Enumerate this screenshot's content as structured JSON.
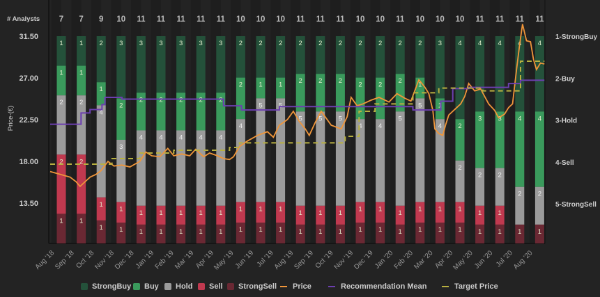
{
  "chart_data": {
    "type": "bar",
    "stacked": "percent",
    "analysts_label": "# Analysts",
    "ylabel": "Price-(€)",
    "ylim": [
      9.2,
      31.5
    ],
    "yticks": [
      "31.50",
      "27.00",
      "22.50",
      "18.00",
      "13.50"
    ],
    "ytick_values": [
      31.5,
      27.0,
      22.5,
      18.0,
      13.5
    ],
    "right_axis_labels": [
      "1-StrongBuy",
      "2-Buy",
      "3-Hold",
      "4-Sell",
      "5-StrongSell"
    ],
    "categories": [
      "Aug '18",
      "Sep '18",
      "Oct '18",
      "Nov '18",
      "Dec '18",
      "Jan '19",
      "Feb '19",
      "Mar '19",
      "Apr '19",
      "May '19",
      "Jun '19",
      "Jul '19",
      "Aug '19",
      "Sep '19",
      "Oct '19",
      "Nov '19",
      "Dec '19",
      "Jan '20",
      "Feb '20",
      "Mar '20",
      "Apr '20",
      "May '20",
      "Jun '20",
      "Jul '20",
      "Aug '20"
    ],
    "analyst_counts": [
      7,
      7,
      9,
      10,
      11,
      11,
      11,
      11,
      11,
      10,
      10,
      10,
      11,
      11,
      11,
      10,
      10,
      11,
      10,
      10,
      10,
      11,
      11,
      11,
      11
    ],
    "series": [
      {
        "name": "StrongBuy",
        "color": "#24513a",
        "values": [
          1,
          1,
          2,
          3,
          3,
          3,
          3,
          3,
          3,
          2,
          2,
          2,
          2,
          2,
          2,
          2,
          2,
          2,
          2,
          3,
          4,
          4,
          4,
          4,
          4
        ]
      },
      {
        "name": "Buy",
        "color": "#3a9a5c",
        "values": [
          1,
          1,
          1,
          2,
          2,
          2,
          2,
          2,
          2,
          2,
          1,
          1,
          2,
          2,
          2,
          2,
          2,
          2,
          1,
          1,
          2,
          3,
          3,
          4,
          4
        ]
      },
      {
        "name": "Hold",
        "color": "#9b9b9b",
        "values": [
          2,
          2,
          4,
          3,
          4,
          4,
          4,
          4,
          4,
          4,
          5,
          5,
          5,
          5,
          5,
          4,
          4,
          5,
          5,
          4,
          2,
          2,
          2,
          2,
          2
        ]
      },
      {
        "name": "Sell",
        "color": "#c0394f",
        "values": [
          2,
          2,
          1,
          1,
          1,
          1,
          1,
          1,
          1,
          1,
          1,
          1,
          1,
          1,
          1,
          1,
          1,
          1,
          1,
          1,
          1,
          1,
          1,
          0,
          0
        ]
      },
      {
        "name": "StrongSell",
        "color": "#6a2833",
        "values": [
          1,
          1,
          1,
          1,
          1,
          1,
          1,
          1,
          1,
          1,
          1,
          1,
          1,
          1,
          1,
          1,
          1,
          1,
          1,
          1,
          1,
          1,
          1,
          1,
          1
        ]
      }
    ],
    "lines": [
      {
        "name": "Price",
        "color": "#f0963a",
        "style": "solid",
        "points": [
          [
            0,
            16.9
          ],
          [
            0.5,
            16.6
          ],
          [
            1.0,
            16.3
          ],
          [
            1.3,
            15.8
          ],
          [
            1.5,
            15.3
          ],
          [
            1.8,
            15.9
          ],
          [
            2.0,
            16.3
          ],
          [
            2.3,
            16.6
          ],
          [
            2.55,
            17.0
          ],
          [
            2.9,
            18.0
          ],
          [
            3.2,
            17.5
          ],
          [
            3.6,
            17.6
          ],
          [
            4.0,
            17.4
          ],
          [
            4.5,
            18.0
          ],
          [
            4.8,
            19.0
          ],
          [
            5.1,
            18.6
          ],
          [
            5.5,
            18.5
          ],
          [
            5.9,
            19.4
          ],
          [
            6.2,
            18.6
          ],
          [
            6.6,
            18.8
          ],
          [
            7.0,
            18.6
          ],
          [
            7.3,
            19.3
          ],
          [
            7.7,
            18.5
          ],
          [
            8.0,
            18.9
          ],
          [
            8.4,
            18.6
          ],
          [
            8.7,
            18.3
          ],
          [
            9.0,
            18.2
          ],
          [
            9.2,
            18.5
          ],
          [
            9.5,
            19.6
          ],
          [
            9.9,
            20.2
          ],
          [
            10.4,
            20.8
          ],
          [
            10.9,
            21.2
          ],
          [
            11.2,
            20.6
          ],
          [
            11.5,
            21.9
          ],
          [
            11.9,
            22.5
          ],
          [
            12.2,
            23.4
          ],
          [
            12.5,
            22.3
          ],
          [
            12.8,
            21.5
          ],
          [
            13.0,
            20.8
          ],
          [
            13.3,
            22.2
          ],
          [
            13.6,
            23.4
          ],
          [
            14.1,
            21.9
          ],
          [
            14.6,
            21.5
          ],
          [
            14.9,
            22.8
          ],
          [
            15.1,
            24.9
          ],
          [
            15.4,
            24.0
          ],
          [
            15.7,
            24.2
          ],
          [
            16.1,
            24.6
          ],
          [
            16.5,
            24.9
          ],
          [
            17.0,
            24.4
          ],
          [
            17.4,
            25.3
          ],
          [
            17.8,
            24.8
          ],
          [
            18.1,
            24.5
          ],
          [
            18.5,
            26.8
          ],
          [
            18.8,
            26.0
          ],
          [
            19.0,
            25.3
          ],
          [
            19.2,
            23.5
          ],
          [
            19.3,
            21.5
          ],
          [
            19.5,
            21.0
          ],
          [
            19.7,
            20.8
          ],
          [
            19.85,
            22.0
          ],
          [
            20.0,
            23.0
          ],
          [
            20.3,
            23.6
          ],
          [
            20.6,
            24.2
          ],
          [
            20.8,
            25.0
          ],
          [
            21.0,
            26.4
          ],
          [
            21.3,
            25.6
          ],
          [
            21.6,
            25.8
          ],
          [
            22.0,
            24.2
          ],
          [
            22.3,
            23.5
          ],
          [
            22.5,
            22.7
          ],
          [
            22.8,
            23.1
          ],
          [
            23.0,
            23.8
          ],
          [
            23.2,
            24.2
          ],
          [
            23.4,
            27.9
          ],
          [
            23.55,
            30.5
          ],
          [
            23.7,
            32.8
          ],
          [
            23.9,
            31.0
          ],
          [
            24.1,
            30.9
          ],
          [
            24.25,
            29.0
          ],
          [
            24.4,
            27.9
          ],
          [
            24.6,
            28.6
          ],
          [
            24.8,
            28.5
          ]
        ]
      },
      {
        "name": "Recommendation Mean",
        "color": "#6c3fb0",
        "style": "step",
        "points": [
          [
            0,
            3.1
          ],
          [
            1.55,
            2.83
          ],
          [
            2.0,
            2.75
          ],
          [
            2.6,
            2.63
          ],
          [
            2.75,
            2.46
          ],
          [
            3.6,
            2.5
          ],
          [
            8.7,
            2.66
          ],
          [
            9.6,
            2.76
          ],
          [
            11.5,
            2.68
          ],
          [
            18.2,
            2.76
          ],
          [
            19.6,
            2.55
          ],
          [
            20.2,
            2.25
          ],
          [
            21.0,
            2.22
          ],
          [
            23.0,
            2.13
          ],
          [
            23.6,
            2.05
          ],
          [
            24.8,
            2.05
          ]
        ]
      },
      {
        "name": "Target Price",
        "color": "#b8b040",
        "style": "dashed-step",
        "points": [
          [
            0,
            17.7
          ],
          [
            3.1,
            18.3
          ],
          [
            4.5,
            18.9
          ],
          [
            6.2,
            19.2
          ],
          [
            9.0,
            19.5
          ],
          [
            9.5,
            20.0
          ],
          [
            14.8,
            20.7
          ],
          [
            15.5,
            23.4
          ],
          [
            16.3,
            24.2
          ],
          [
            18.2,
            25.4
          ],
          [
            19.5,
            25.9
          ],
          [
            21.7,
            25.6
          ],
          [
            23.6,
            28.8
          ],
          [
            24.8,
            28.8
          ]
        ]
      }
    ],
    "legend": [
      "StrongBuy",
      "Buy",
      "Hold",
      "Sell",
      "StrongSell",
      "Price",
      "Recommendation Mean",
      "Target Price"
    ],
    "legend_position": "bottom"
  }
}
